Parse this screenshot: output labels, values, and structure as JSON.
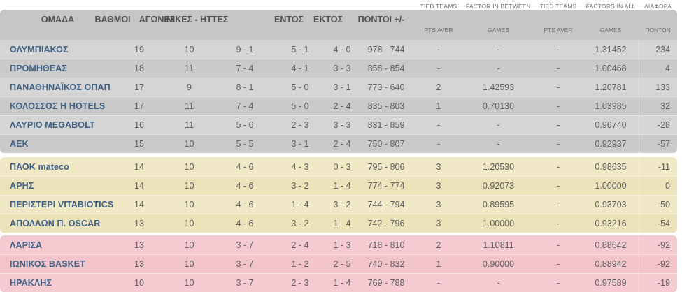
{
  "header": {
    "team_column": "ΟΜΑΔΑ",
    "columns": [
      "ΟΜΑΔΑ",
      "ΒΑΘΜΟΙ",
      "ΑΓΩΝΕΣ",
      "ΝΙΚΕΣ - ΗΤΤΕΣ",
      "ΕΝΤΟΣ",
      "ΕΚΤΟΣ",
      "ΠΟΝΤΟΙ +/-"
    ],
    "top_labels": [
      "TIED TEAMS",
      "FACTOR IN BETWEEN",
      "TIED TEAMS",
      "FACTORS IN ALL",
      "ΔΙΑΦΟΡΑ"
    ],
    "sub_labels": [
      "PTS AVER",
      "GAMES",
      "PTS AVER",
      "GAMES",
      "ΠΟΝΤΩΝ"
    ]
  },
  "rows": [
    {
      "zone": "safe",
      "team": "ΟΛΥΜΠΙΑΚΟΣ",
      "points": "19",
      "games": "10",
      "wins_losses": "9 - 1",
      "home": "5 - 1",
      "away": "4 - 0",
      "pts_plus_minus": "978 - 744",
      "tied_pts_aver_1": "-",
      "factor_between_games": "-",
      "tied_pts_aver_2": "-",
      "factors_all_games": "1.31452",
      "diff": "234"
    },
    {
      "zone": "safe",
      "team": "ΠΡΟΜΗΘΕΑΣ",
      "points": "18",
      "games": "11",
      "wins_losses": "7 - 4",
      "home": "4 - 1",
      "away": "3 - 3",
      "pts_plus_minus": "858 - 854",
      "tied_pts_aver_1": "-",
      "factor_between_games": "-",
      "tied_pts_aver_2": "-",
      "factors_all_games": "1.00468",
      "diff": "4"
    },
    {
      "zone": "safe",
      "team": "ΠΑΝΑΘΗΝΑΪΚΟΣ ΟΠΑΠ",
      "points": "17",
      "games": "9",
      "wins_losses": "8 - 1",
      "home": "5 - 0",
      "away": "3 - 1",
      "pts_plus_minus": "773 - 640",
      "tied_pts_aver_1": "2",
      "factor_between_games": "1.42593",
      "tied_pts_aver_2": "-",
      "factors_all_games": "1.20781",
      "diff": "133"
    },
    {
      "zone": "safe",
      "team": "ΚΟΛΟΣΣΟΣ Η HOTELS",
      "points": "17",
      "games": "11",
      "wins_losses": "7 - 4",
      "home": "5 - 0",
      "away": "2 - 4",
      "pts_plus_minus": "835 - 803",
      "tied_pts_aver_1": "1",
      "factor_between_games": "0.70130",
      "tied_pts_aver_2": "-",
      "factors_all_games": "1.03985",
      "diff": "32"
    },
    {
      "zone": "safe",
      "team": "ΛΑΥΡΙΟ MEGABOLT",
      "points": "16",
      "games": "11",
      "wins_losses": "5 - 6",
      "home": "2 - 3",
      "away": "3 - 3",
      "pts_plus_minus": "831 - 859",
      "tied_pts_aver_1": "-",
      "factor_between_games": "-",
      "tied_pts_aver_2": "-",
      "factors_all_games": "0.96740",
      "diff": "-28"
    },
    {
      "zone": "safe",
      "team": "ΑΕΚ",
      "points": "15",
      "games": "10",
      "wins_losses": "5 - 5",
      "home": "3 - 1",
      "away": "2 - 4",
      "pts_plus_minus": "750 - 807",
      "tied_pts_aver_1": "-",
      "factor_between_games": "-",
      "tied_pts_aver_2": "-",
      "factors_all_games": "0.92937",
      "diff": "-57"
    },
    {
      "zone": "mid",
      "team": "ΠΑΟΚ mateco",
      "points": "14",
      "games": "10",
      "wins_losses": "4 - 6",
      "home": "4 - 3",
      "away": "0 - 3",
      "pts_plus_minus": "795 - 806",
      "tied_pts_aver_1": "3",
      "factor_between_games": "1.20530",
      "tied_pts_aver_2": "-",
      "factors_all_games": "0.98635",
      "diff": "-11"
    },
    {
      "zone": "mid",
      "team": "ΑΡΗΣ",
      "points": "14",
      "games": "10",
      "wins_losses": "4 - 6",
      "home": "3 - 2",
      "away": "1 - 4",
      "pts_plus_minus": "774 - 774",
      "tied_pts_aver_1": "3",
      "factor_between_games": "0.92073",
      "tied_pts_aver_2": "-",
      "factors_all_games": "1.00000",
      "diff": "0"
    },
    {
      "zone": "mid",
      "team": "ΠΕΡΙΣΤΕΡΙ VITABIOTICS",
      "points": "14",
      "games": "10",
      "wins_losses": "4 - 6",
      "home": "1 - 4",
      "away": "3 - 2",
      "pts_plus_minus": "744 - 794",
      "tied_pts_aver_1": "3",
      "factor_between_games": "0.89595",
      "tied_pts_aver_2": "-",
      "factors_all_games": "0.93703",
      "diff": "-50"
    },
    {
      "zone": "mid",
      "team": "ΑΠΟΛΛΩΝ Π. OSCAR",
      "points": "13",
      "games": "10",
      "wins_losses": "4 - 6",
      "home": "3 - 2",
      "away": "1 - 4",
      "pts_plus_minus": "742 - 796",
      "tied_pts_aver_1": "3",
      "factor_between_games": "1.00000",
      "tied_pts_aver_2": "-",
      "factors_all_games": "0.93216",
      "diff": "-54"
    },
    {
      "zone": "danger",
      "team": "ΛΑΡΙΣΑ",
      "points": "13",
      "games": "10",
      "wins_losses": "3 - 7",
      "home": "2 - 4",
      "away": "1 - 3",
      "pts_plus_minus": "718 - 810",
      "tied_pts_aver_1": "2",
      "factor_between_games": "1.10811",
      "tied_pts_aver_2": "-",
      "factors_all_games": "0.88642",
      "diff": "-92"
    },
    {
      "zone": "danger",
      "team": "ΙΩΝΙΚΟΣ BASKET",
      "points": "13",
      "games": "10",
      "wins_losses": "3 - 7",
      "home": "1 - 2",
      "away": "2 - 5",
      "pts_plus_minus": "740 - 832",
      "tied_pts_aver_1": "1",
      "factor_between_games": "0.90000",
      "tied_pts_aver_2": "-",
      "factors_all_games": "0.88942",
      "diff": "-92"
    },
    {
      "zone": "danger",
      "team": "ΗΡΑΚΛΗΣ",
      "points": "10",
      "games": "10",
      "wins_losses": "3 - 7",
      "home": "2 - 3",
      "away": "1 - 4",
      "pts_plus_minus": "769 - 788",
      "tied_pts_aver_1": "-",
      "factor_between_games": "-",
      "tied_pts_aver_2": "-",
      "factors_all_games": "0.97589",
      "diff": "-19"
    }
  ],
  "colors": {
    "header_bg": "#c6c6c6",
    "safe_odd": "#d5d5d5",
    "safe_even": "#cacaca",
    "mid_odd": "#f1e8c6",
    "mid_even": "#ece3bb",
    "danger_odd": "#f5cbd1",
    "danger_even": "#f2c3c9",
    "team_color": "#3e6186",
    "num_color": "#5e5e5e",
    "head_color": "#4f4f4f",
    "small_color": "#6e6e6e"
  }
}
